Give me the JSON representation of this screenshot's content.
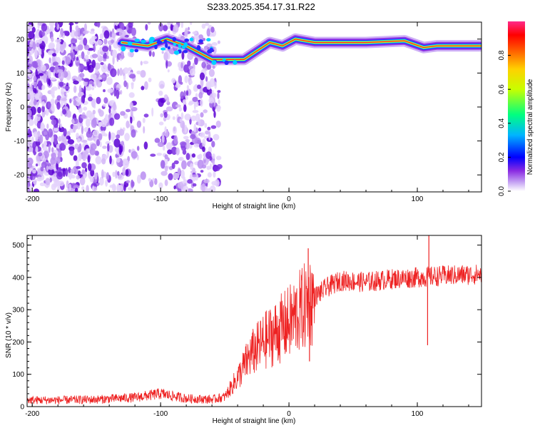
{
  "title": "S233.2025.354.17.31.R22",
  "chart_data": [
    {
      "type": "heatmap",
      "name": "spectrogram",
      "xlabel": "Height of straight line (km)",
      "ylabel": "Frequency (Hz)",
      "xlim": [
        -204,
        150
      ],
      "ylim": [
        -25,
        25
      ],
      "xticks": [
        -200,
        -100,
        0,
        100
      ],
      "yticks": [
        -20,
        -10,
        0,
        10,
        20
      ],
      "colorbar": {
        "label": "Normalized spectral amplitude",
        "range": [
          0,
          1
        ],
        "ticks": [
          "0.0",
          "0.2",
          "0.4",
          "0.6",
          "0.8"
        ],
        "colors": [
          "#ffffff",
          "#b58cf0",
          "#6a00e8",
          "#0000ff",
          "#00c8ff",
          "#00ff80",
          "#ffff00",
          "#ff8000",
          "#ff0000",
          "#ff3399"
        ]
      },
      "signal_track": [
        {
          "x": -130,
          "freq": 19.0
        },
        {
          "x": -110,
          "freq": 18.0
        },
        {
          "x": -95,
          "freq": 20.0
        },
        {
          "x": -80,
          "freq": 18.0
        },
        {
          "x": -60,
          "freq": 14.0
        },
        {
          "x": -45,
          "freq": 14.0
        },
        {
          "x": -35,
          "freq": 14.0
        },
        {
          "x": -25,
          "freq": 16.5
        },
        {
          "x": -15,
          "freq": 19.0
        },
        {
          "x": -5,
          "freq": 18.0
        },
        {
          "x": 5,
          "freq": 20.0
        },
        {
          "x": 20,
          "freq": 19.0
        },
        {
          "x": 60,
          "freq": 19.0
        },
        {
          "x": 90,
          "freq": 19.5
        },
        {
          "x": 105,
          "freq": 17.5
        },
        {
          "x": 115,
          "freq": 18.0
        },
        {
          "x": 150,
          "freq": 18.0
        }
      ]
    },
    {
      "type": "line",
      "name": "snr",
      "xlabel": "Height of straight line (km)",
      "ylabel": "SNR (10 * v/v)",
      "xlim": [
        -204,
        150
      ],
      "ylim": [
        0,
        530
      ],
      "xticks": [
        -200,
        -100,
        0,
        100
      ],
      "yticks": [
        0,
        100,
        200,
        300,
        400,
        500
      ],
      "color": "#ee2222",
      "series": [
        {
          "name": "SNR",
          "x": [
            -204,
            -180,
            -150,
            -120,
            -100,
            -80,
            -60,
            -50,
            -40,
            -30,
            -20,
            -10,
            0,
            10,
            20,
            30,
            40,
            60,
            80,
            100,
            120,
            150
          ],
          "values": [
            20,
            20,
            22,
            28,
            40,
            25,
            22,
            30,
            90,
            160,
            200,
            230,
            260,
            300,
            340,
            370,
            390,
            385,
            395,
            400,
            405,
            410
          ]
        }
      ],
      "spikes": [
        {
          "x": 15,
          "value": 490
        },
        {
          "x": 16,
          "value": 140
        },
        {
          "x": 109,
          "value": 530
        },
        {
          "x": 108,
          "value": 190
        }
      ]
    }
  ]
}
